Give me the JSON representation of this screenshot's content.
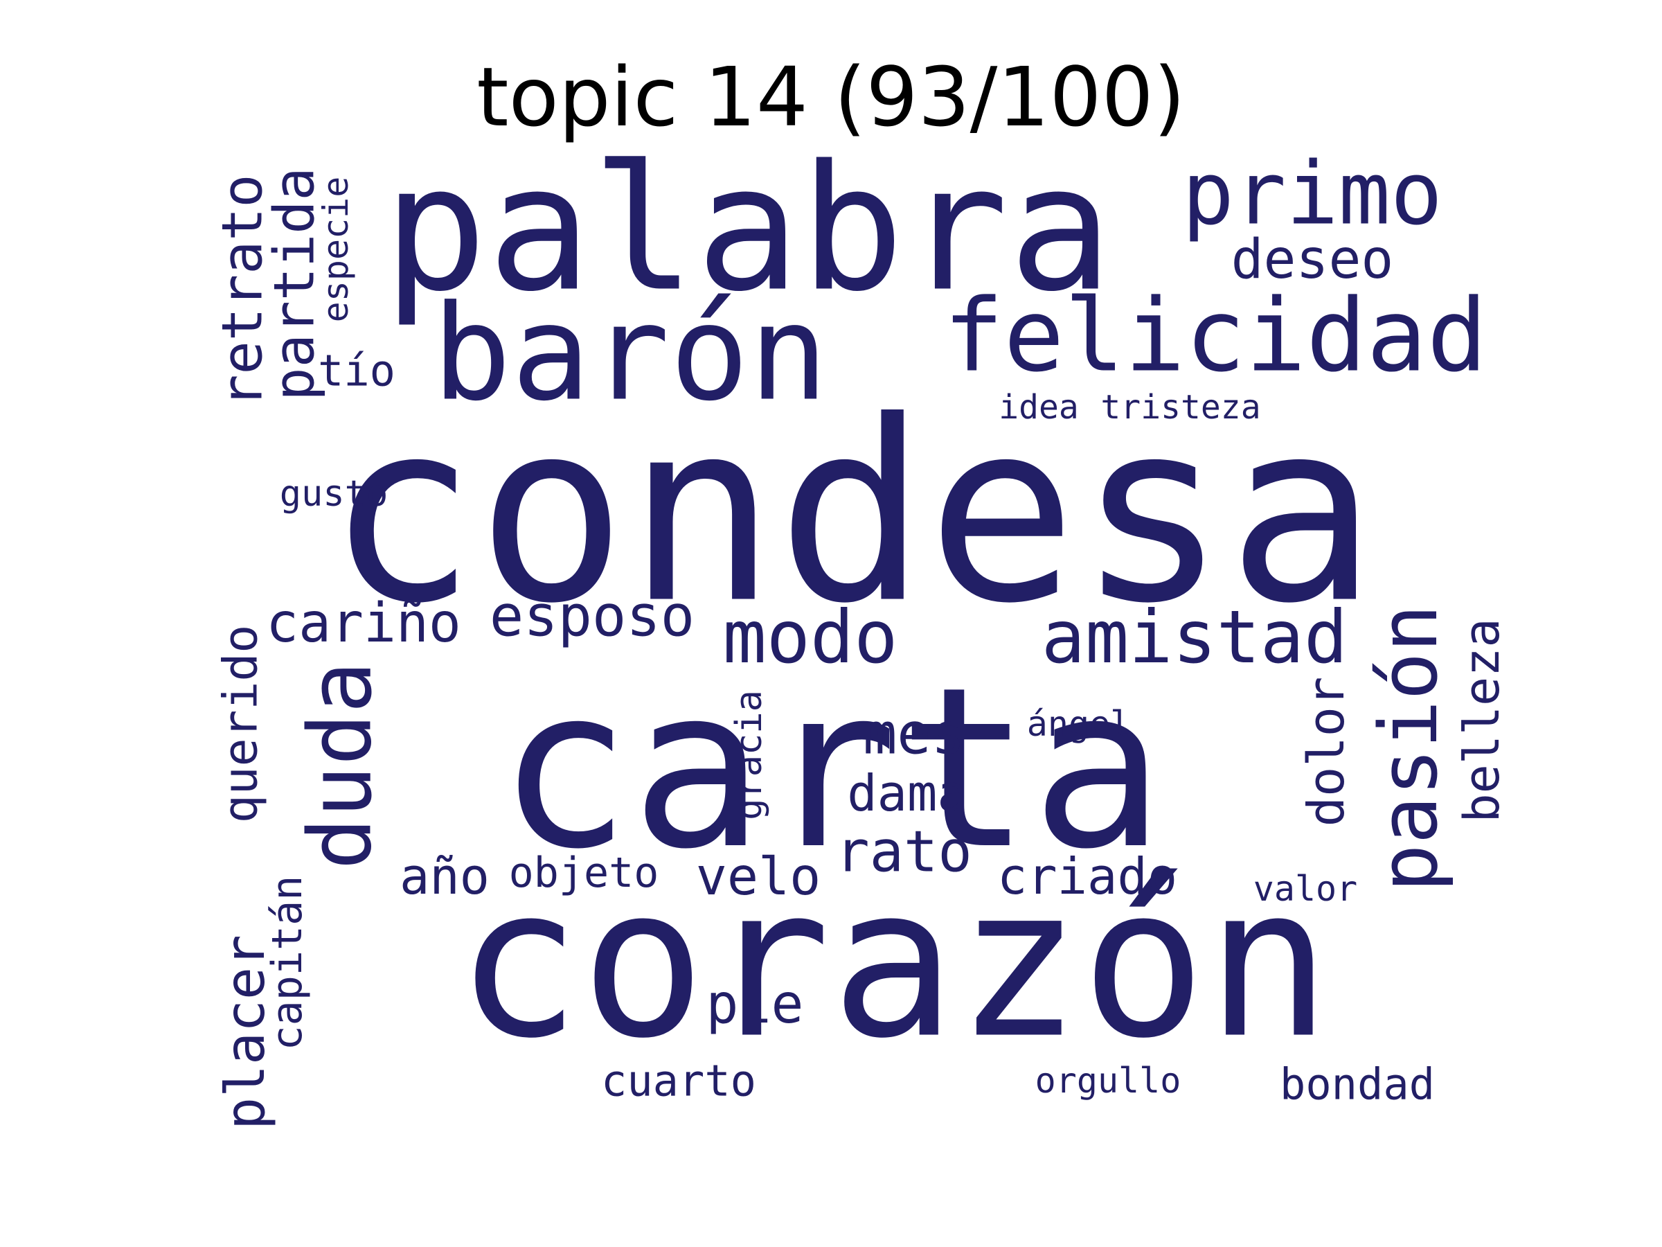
{
  "title": "topic 14 (93/100)",
  "word_color": "#221f66",
  "words": [
    {
      "text": "condesa"
    },
    {
      "text": "carta"
    },
    {
      "text": "corazón"
    },
    {
      "text": "palabra"
    },
    {
      "text": "barón"
    },
    {
      "text": "felicidad"
    },
    {
      "text": "primo"
    },
    {
      "text": "deseo"
    },
    {
      "text": "amistad"
    },
    {
      "text": "modo"
    },
    {
      "text": "esposo"
    },
    {
      "text": "cariño"
    },
    {
      "text": "duda"
    },
    {
      "text": "pasión"
    },
    {
      "text": "belleza"
    },
    {
      "text": "dolor"
    },
    {
      "text": "retrato"
    },
    {
      "text": "partida"
    },
    {
      "text": "especie"
    },
    {
      "text": "tío"
    },
    {
      "text": "idea"
    },
    {
      "text": "tristeza"
    },
    {
      "text": "gusto"
    },
    {
      "text": "placer"
    },
    {
      "text": "querido"
    },
    {
      "text": "capitán"
    },
    {
      "text": "mes"
    },
    {
      "text": "dama"
    },
    {
      "text": "rato"
    },
    {
      "text": "gracia"
    },
    {
      "text": "ángel"
    },
    {
      "text": "año"
    },
    {
      "text": "objeto"
    },
    {
      "text": "velo"
    },
    {
      "text": "criado"
    },
    {
      "text": "valor"
    },
    {
      "text": "pie"
    },
    {
      "text": "cuarto"
    },
    {
      "text": "orgullo"
    },
    {
      "text": "bondad"
    }
  ]
}
